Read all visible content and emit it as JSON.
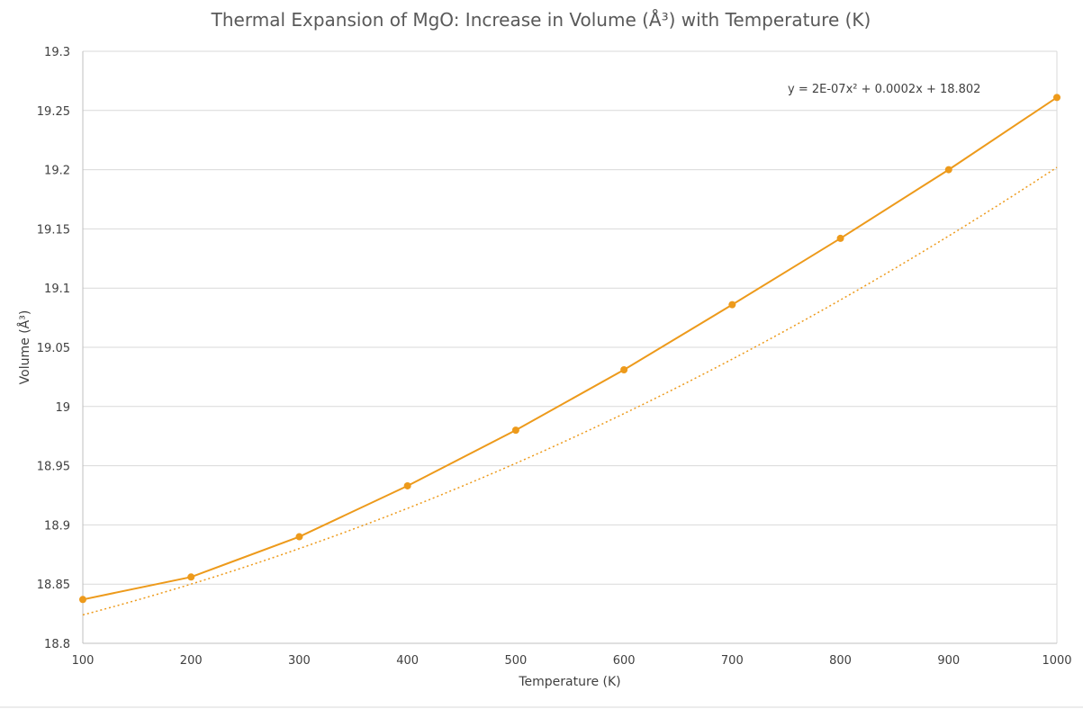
{
  "chart_data": {
    "type": "line",
    "title": "Thermal Expansion of MgO: Increase in Volume (Å³) with Temperature (K)",
    "xlabel": "Temperature (K)",
    "ylabel": "Volume (Å³)",
    "x": [
      100,
      200,
      300,
      400,
      500,
      600,
      700,
      800,
      900,
      1000
    ],
    "series": [
      {
        "values": [
          18.837,
          18.856,
          18.89,
          18.933,
          18.98,
          19.031,
          19.086,
          19.142,
          19.2,
          19.261
        ],
        "color": "#ed9a1b",
        "markers": true
      }
    ],
    "trendline": {
      "type": "polynomial-2",
      "equation": "y = 2E-07x² + 0.0002x + 18.802",
      "coefficients": [
        2e-07,
        0.0002,
        18.802
      ],
      "color": "#ed9a1b",
      "style": "dotted"
    },
    "xlim": [
      100,
      1000
    ],
    "ylim": [
      18.8,
      19.3
    ],
    "xticks": [
      100,
      200,
      300,
      400,
      500,
      600,
      700,
      800,
      900,
      1000
    ],
    "xtick_labels": [
      "100",
      "200",
      "300",
      "400",
      "500",
      "600",
      "700",
      "800",
      "900",
      "1000"
    ],
    "yticks": [
      18.8,
      18.85,
      18.9,
      18.95,
      19.0,
      19.05,
      19.1,
      19.15,
      19.2,
      19.25,
      19.3
    ],
    "ytick_labels": [
      "18.8",
      "18.85",
      "18.9",
      "18.95",
      "19",
      "19.05",
      "19.1",
      "19.15",
      "19.2",
      "19.25",
      "19.3"
    ],
    "grid": true,
    "legend": "none"
  }
}
